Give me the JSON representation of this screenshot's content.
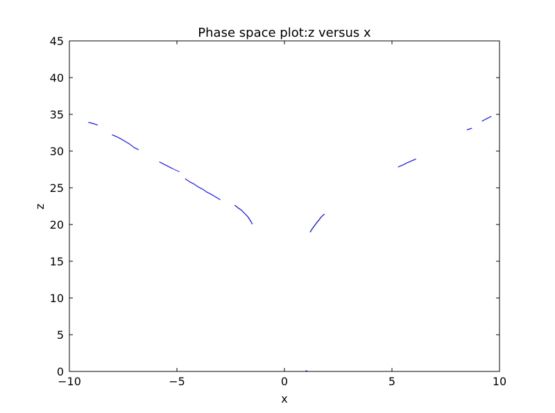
{
  "chart_data": {
    "type": "scatter",
    "title": "Phase space plot:z versus x",
    "xlabel": "x",
    "ylabel": "z",
    "xlim": [
      -10,
      10
    ],
    "ylim": [
      0,
      45
    ],
    "xticks": [
      -10,
      -5,
      0,
      5,
      10
    ],
    "xtick_labels": [
      "−10",
      "−5",
      "0",
      "5",
      "10"
    ],
    "yticks": [
      0,
      5,
      10,
      15,
      20,
      25,
      30,
      35,
      40,
      45
    ],
    "ytick_labels": [
      "0",
      "5",
      "10",
      "15",
      "20",
      "25",
      "30",
      "35",
      "40",
      "45"
    ],
    "grid": false,
    "marker_color": "#0000ff",
    "series": [
      {
        "segments": [
          [
            [
              -9.1,
              33.9
            ],
            [
              -8.9,
              33.75
            ],
            [
              -8.7,
              33.55
            ]
          ],
          [
            [
              -8.0,
              32.2
            ],
            [
              -7.8,
              31.95
            ],
            [
              -7.6,
              31.65
            ],
            [
              -7.4,
              31.3
            ],
            [
              -7.2,
              30.95
            ],
            [
              -7.0,
              30.5
            ],
            [
              -6.8,
              30.2
            ]
          ],
          [
            [
              -5.8,
              28.5
            ],
            [
              -5.6,
              28.2
            ],
            [
              -5.4,
              27.9
            ],
            [
              -5.2,
              27.6
            ],
            [
              -4.9,
              27.2
            ]
          ],
          [
            [
              -4.6,
              26.2
            ],
            [
              -4.4,
              25.8
            ],
            [
              -4.2,
              25.5
            ],
            [
              -4.0,
              25.1
            ],
            [
              -3.8,
              24.8
            ],
            [
              -3.6,
              24.4
            ],
            [
              -3.4,
              24.1
            ],
            [
              -3.2,
              23.75
            ],
            [
              -3.0,
              23.4
            ]
          ],
          [
            [
              -2.3,
              22.6
            ],
            [
              -2.15,
              22.25
            ],
            [
              -2.0,
              21.95
            ],
            [
              -1.85,
              21.5
            ],
            [
              -1.7,
              21.05
            ],
            [
              -1.6,
              20.6
            ],
            [
              -1.5,
              20.1
            ]
          ],
          [
            [
              1.2,
              19.0
            ],
            [
              1.3,
              19.45
            ],
            [
              1.4,
              19.85
            ],
            [
              1.5,
              20.25
            ],
            [
              1.6,
              20.6
            ],
            [
              1.7,
              21.0
            ],
            [
              1.85,
              21.4
            ]
          ],
          [
            [
              1.0,
              0.05
            ],
            [
              1.05,
              0.05
            ]
          ],
          [
            [
              5.3,
              27.85
            ],
            [
              5.5,
              28.1
            ],
            [
              5.7,
              28.4
            ],
            [
              5.9,
              28.65
            ],
            [
              6.1,
              28.9
            ]
          ],
          [
            [
              8.5,
              32.9
            ],
            [
              8.7,
              33.1
            ]
          ],
          [
            [
              9.2,
              34.1
            ],
            [
              9.4,
              34.4
            ],
            [
              9.6,
              34.7
            ]
          ]
        ]
      }
    ]
  }
}
